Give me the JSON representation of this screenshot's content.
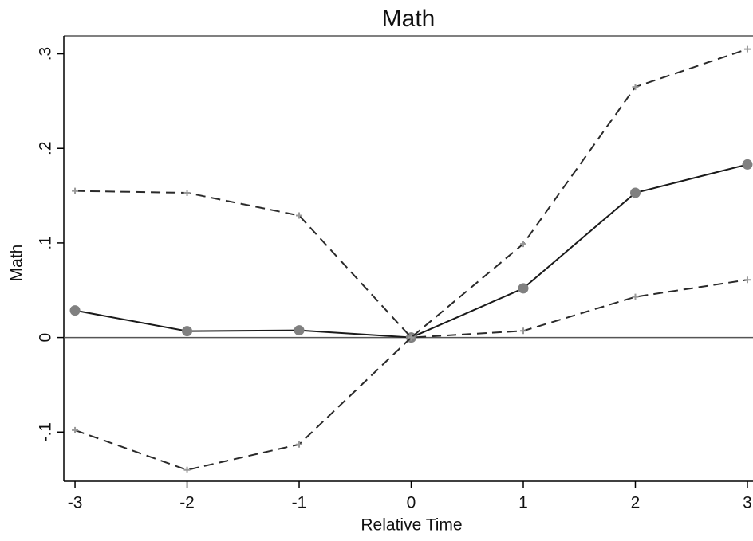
{
  "chart_data": {
    "type": "line",
    "title": "Math",
    "xlabel": "Relative Time",
    "ylabel": "Math",
    "x": [
      -3,
      -2,
      -1,
      0,
      1,
      2,
      3
    ],
    "series": [
      {
        "color": "#1a1a1a",
        "marker_color": "#808080",
        "style": "solid",
        "marker": "circle",
        "values": [
          0.0286,
          0.0067,
          0.0076,
          0,
          0.052,
          0.153,
          0.183
        ]
      },
      {
        "color": "#2a2a2a",
        "marker_color": "#999999",
        "style": "dashed",
        "marker": "plus",
        "values": [
          0.155,
          0.153,
          0.129,
          0,
          0.099,
          0.265,
          0.305
        ]
      },
      {
        "color": "#2a2a2a",
        "marker_color": "#999999",
        "style": "dashed",
        "marker": "plus",
        "values": [
          -0.098,
          -0.14,
          -0.113,
          0,
          0.007,
          0.043,
          0.061
        ]
      }
    ],
    "xlim": [
      -3.1,
      3.05
    ],
    "ylim": [
      -0.152,
      0.319
    ],
    "xticks": [
      -3,
      -2,
      -1,
      0,
      1,
      2,
      3
    ],
    "yticks": [
      {
        "value": -0.1,
        "label": "-.1"
      },
      0,
      {
        "value": 0.1,
        "label": ".1"
      },
      {
        "value": 0.2,
        "label": ".2"
      },
      {
        "value": 0.3,
        "label": ".3"
      }
    ],
    "reference_line": 0
  }
}
